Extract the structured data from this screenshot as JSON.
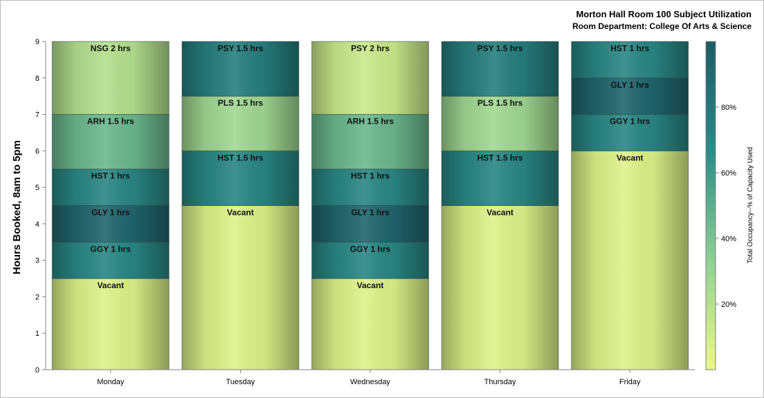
{
  "title": "Morton Hall Room 100 Subject Utilization",
  "subtitle": "Room Department:  College Of Arts & Science",
  "chart_data": {
    "type": "bar",
    "stacked": true,
    "ylabel": "Hours Booked, 8am to 5pm",
    "xlabel": "",
    "ylim": [
      0,
      9
    ],
    "yticks": [
      "0",
      "1",
      "2",
      "3",
      "4",
      "5",
      "6",
      "7",
      "8",
      "9"
    ],
    "categories": [
      "Monday",
      "Tuesday",
      "Wednesday",
      "Thursday",
      "Friday"
    ],
    "bars": [
      {
        "day": "Monday",
        "segments": [
          {
            "label": "Vacant",
            "hours": 2.5,
            "occupancy": 5
          },
          {
            "label": "GGY 1 hrs",
            "hours": 1,
            "occupancy": 70
          },
          {
            "label": "GLY 1 hrs",
            "hours": 1,
            "occupancy": 93
          },
          {
            "label": "HST 1 hrs",
            "hours": 1,
            "occupancy": 70
          },
          {
            "label": "ARH 1.5 hrs",
            "hours": 1.5,
            "occupancy": 45
          },
          {
            "label": "NSG 2 hrs",
            "hours": 2,
            "occupancy": 20
          }
        ]
      },
      {
        "day": "Tuesday",
        "segments": [
          {
            "label": "Vacant",
            "hours": 4.5,
            "occupancy": 5
          },
          {
            "label": "HST 1.5 hrs",
            "hours": 1.5,
            "occupancy": 70
          },
          {
            "label": "PLS 1.5 hrs",
            "hours": 1.5,
            "occupancy": 27
          },
          {
            "label": "PSY 1.5 hrs",
            "hours": 1.5,
            "occupancy": 76
          }
        ]
      },
      {
        "day": "Wednesday",
        "segments": [
          {
            "label": "Vacant",
            "hours": 2.5,
            "occupancy": 5
          },
          {
            "label": "GGY 1 hrs",
            "hours": 1,
            "occupancy": 70
          },
          {
            "label": "GLY 1 hrs",
            "hours": 1,
            "occupancy": 93
          },
          {
            "label": "HST 1 hrs",
            "hours": 1,
            "occupancy": 70
          },
          {
            "label": "ARH 1.5 hrs",
            "hours": 1.5,
            "occupancy": 45
          },
          {
            "label": "PSY 2 hrs",
            "hours": 2,
            "occupancy": 12
          }
        ]
      },
      {
        "day": "Thursday",
        "segments": [
          {
            "label": "Vacant",
            "hours": 4.5,
            "occupancy": 5
          },
          {
            "label": "HST 1.5 hrs",
            "hours": 1.5,
            "occupancy": 70
          },
          {
            "label": "PLS 1.5 hrs",
            "hours": 1.5,
            "occupancy": 27
          },
          {
            "label": "PSY 1.5 hrs",
            "hours": 1.5,
            "occupancy": 76
          }
        ]
      },
      {
        "day": "Friday",
        "segments": [
          {
            "label": "Vacant",
            "hours": 6,
            "occupancy": 5
          },
          {
            "label": "GGY 1 hrs",
            "hours": 1,
            "occupancy": 70
          },
          {
            "label": "GLY 1 hrs",
            "hours": 1,
            "occupancy": 93
          },
          {
            "label": "HST 1 hrs",
            "hours": 1,
            "occupancy": 70
          }
        ]
      }
    ],
    "colorbar": {
      "title": "Total Occupancy--% of Capacity Used",
      "range": [
        0,
        100
      ],
      "ticks": [
        {
          "value": 20,
          "label": "20%"
        },
        {
          "value": 40,
          "label": "40%"
        },
        {
          "value": 60,
          "label": "60%"
        },
        {
          "value": 80,
          "label": "80%"
        }
      ],
      "colors": [
        "#ecf887",
        "#8fd094",
        "#2a8c87",
        "#1e5a66"
      ]
    },
    "grid": false,
    "legend": "right"
  }
}
